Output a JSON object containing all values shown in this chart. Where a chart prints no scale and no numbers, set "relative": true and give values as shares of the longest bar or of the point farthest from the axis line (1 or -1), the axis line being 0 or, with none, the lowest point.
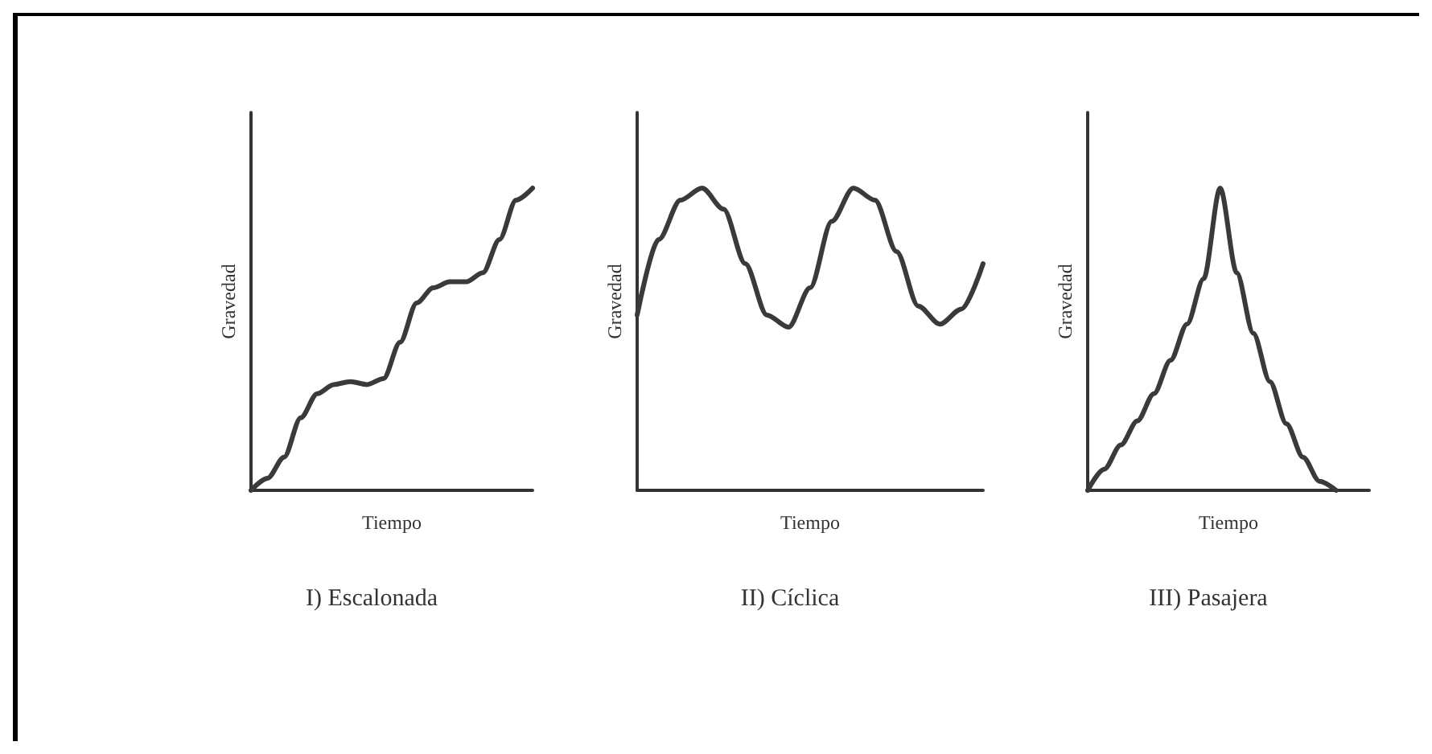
{
  "chart_data": [
    {
      "type": "line",
      "title": "I) Escalonada",
      "xlabel": "Tiempo",
      "ylabel": "Gravedad",
      "relative": true,
      "tick_labels": false,
      "marker": "none",
      "line_style": "solid",
      "categories": [
        null,
        null,
        null,
        null,
        null,
        null,
        null,
        null,
        null,
        null,
        null,
        null,
        null,
        null,
        null,
        null,
        null,
        null
      ],
      "series": [
        {
          "color": "#3a3a3a",
          "values": [
            0,
            0.04,
            0.11,
            0.24,
            0.32,
            0.35,
            0.36,
            0.35,
            0.37,
            0.49,
            0.62,
            0.67,
            0.69,
            0.69,
            0.72,
            0.83,
            0.96,
            1
          ]
        }
      ]
    },
    {
      "type": "line",
      "title": "II) Cíclica",
      "xlabel": "Tiempo",
      "ylabel": "Gravedad",
      "relative": true,
      "tick_labels": false,
      "marker": "none",
      "line_style": "solid",
      "categories": [
        null,
        null,
        null,
        null,
        null,
        null,
        null,
        null,
        null,
        null,
        null,
        null,
        null,
        null,
        null,
        null,
        null
      ],
      "series": [
        {
          "color": "#3a3a3a",
          "values": [
            0.58,
            0.83,
            0.96,
            1,
            0.93,
            0.75,
            0.58,
            0.54,
            0.67,
            0.89,
            1,
            0.96,
            0.79,
            0.61,
            0.55,
            0.6,
            0.75
          ]
        }
      ]
    },
    {
      "type": "line",
      "title": "III) Pasajera",
      "xlabel": "Tiempo",
      "ylabel": "Gravedad",
      "relative": true,
      "tick_labels": false,
      "marker": "none",
      "line_style": "solid",
      "categories": [
        null,
        null,
        null,
        null,
        null,
        null,
        null,
        null,
        null,
        null,
        null,
        null,
        null,
        null,
        null,
        null,
        null,
        null
      ],
      "series": [
        {
          "color": "#3a3a3a",
          "values": [
            0,
            0.07,
            0.15,
            0.23,
            0.32,
            0.43,
            0.55,
            0.7,
            1,
            0.72,
            0.52,
            0.36,
            0.22,
            0.11,
            0.03,
            0,
            null,
            null
          ]
        }
      ]
    }
  ]
}
